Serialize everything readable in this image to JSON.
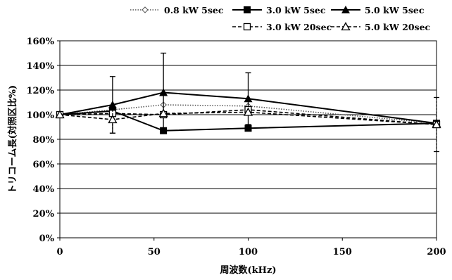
{
  "chart_data": {
    "type": "line",
    "xlabel": "周波数(kHz)",
    "ylabel": "トリコーム長(対照区比%)",
    "xlim": [
      0,
      200
    ],
    "ylim": [
      0,
      160
    ],
    "xticks": [
      0,
      50,
      100,
      150,
      200
    ],
    "yticks": [
      0,
      20,
      40,
      60,
      80,
      100,
      120,
      140,
      160
    ],
    "xtick_labels": [
      "0",
      "50",
      "100",
      "150",
      "200"
    ],
    "ytick_labels": [
      "0%",
      "20%",
      "40%",
      "60%",
      "80%",
      "100%",
      "120%",
      "140%",
      "160%"
    ],
    "grid": "horizontal",
    "legend_position": "top-right",
    "series": [
      {
        "name": "0.8 kW 5sec",
        "marker": "diamond-open",
        "line": "dotted",
        "x": [
          0,
          28,
          55,
          100,
          200
        ],
        "y": [
          100,
          104,
          108,
          107,
          93
        ]
      },
      {
        "name": "3.0 kW 5sec",
        "marker": "square-filled",
        "line": "solid",
        "x": [
          0,
          28,
          55,
          100,
          200
        ],
        "y": [
          100,
          103,
          87,
          89,
          93
        ]
      },
      {
        "name": "5.0 kW 5sec",
        "marker": "triangle-filled",
        "line": "solid",
        "x": [
          0,
          28,
          55,
          100,
          200
        ],
        "y": [
          100,
          108,
          118,
          113,
          93
        ],
        "err": [
          0,
          23,
          32,
          21,
          0
        ]
      },
      {
        "name": "3.0 kW 20sec",
        "marker": "square-open",
        "line": "dashed",
        "x": [
          0,
          28,
          55,
          100,
          200
        ],
        "y": [
          100,
          101,
          100,
          104,
          92
        ],
        "err": [
          0,
          0,
          0,
          0,
          22
        ]
      },
      {
        "name": "5.0 kW 20sec",
        "marker": "triangle-open",
        "line": "dashed",
        "x": [
          0,
          28,
          55,
          100,
          200
        ],
        "y": [
          100,
          96,
          101,
          102,
          92
        ],
        "err": [
          0,
          11,
          0,
          0,
          0
        ]
      }
    ]
  }
}
